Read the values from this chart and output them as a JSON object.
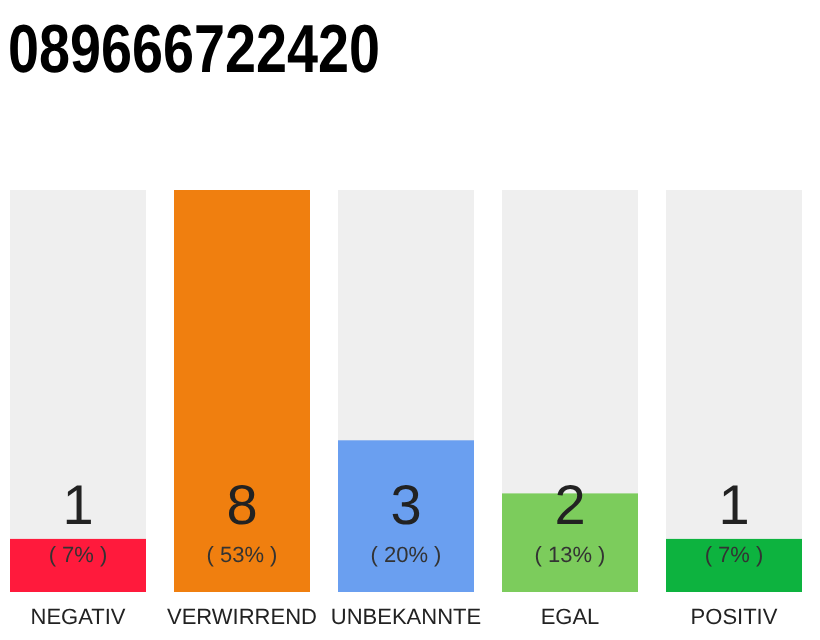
{
  "chart_data": {
    "type": "bar",
    "title": "089666722420",
    "categories": [
      "NEGATIV",
      "VERWIRREND",
      "UNBEKANNTE",
      "EGAL",
      "POSITIV"
    ],
    "values": [
      7,
      53,
      20,
      13,
      7
    ],
    "annotations": [
      "1",
      "8",
      "3",
      "2",
      "1"
    ],
    "colors": [
      "#ff1a3c",
      "#f07f0f",
      "#6a9ff0",
      "#7ccc5c",
      "#0db33f"
    ],
    "value_labels": [
      "( 7% )",
      "( 53% )",
      "( 20% )",
      "( 13% )",
      "( 7% )"
    ],
    "subtitle": null
  }
}
